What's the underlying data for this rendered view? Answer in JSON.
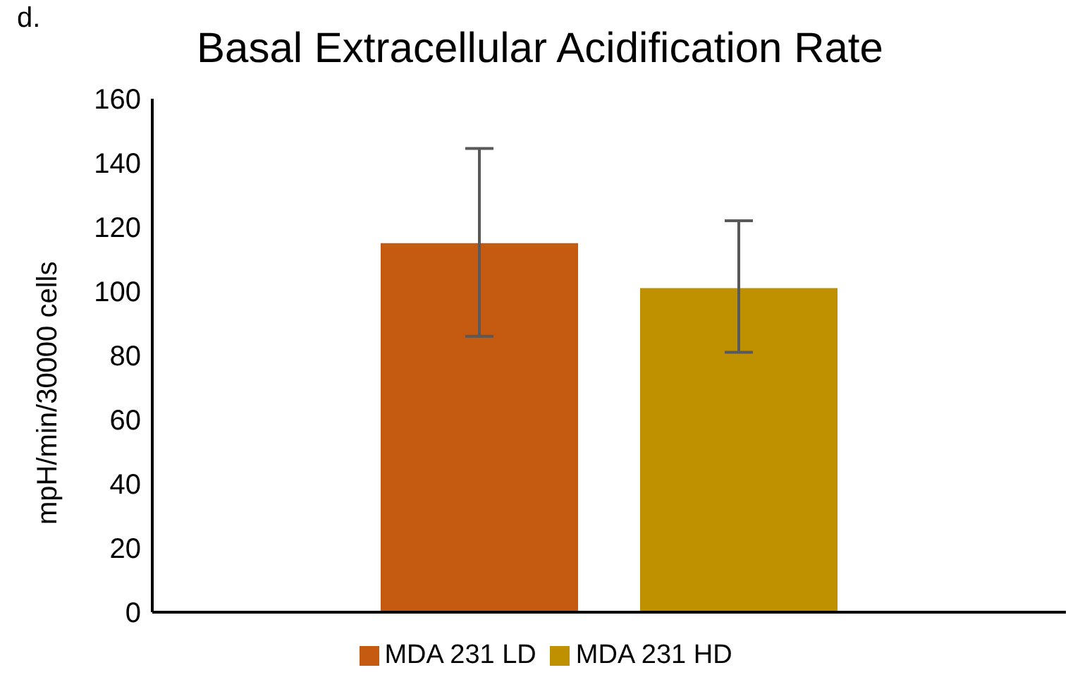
{
  "chart_data": {
    "type": "bar",
    "title": "Basal Extracellular Acidification Rate",
    "ylabel": "mpH/min/30000 cells",
    "annotations": [
      "d."
    ],
    "categories": [
      null
    ],
    "series": [
      {
        "name": "MDA 231 LD",
        "color": "#c55a11",
        "values": [
          115
        ],
        "errors": [
          [
            86,
            144.5
          ]
        ]
      },
      {
        "name": "MDA 231 HD",
        "color": "#bf9000",
        "values": [
          101
        ],
        "errors": [
          [
            81,
            122
          ]
        ]
      }
    ],
    "ylim": [
      0,
      160
    ],
    "yticks": [
      0,
      20,
      40,
      60,
      80,
      100,
      120,
      140,
      160
    ],
    "grid": false,
    "legend": "bottom"
  }
}
